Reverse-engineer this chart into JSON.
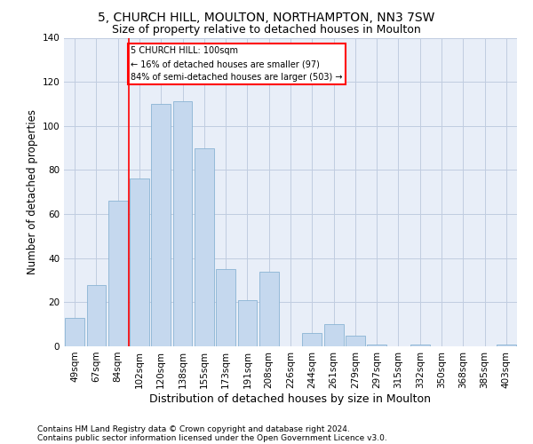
{
  "title_line1": "5, CHURCH HILL, MOULTON, NORTHAMPTON, NN3 7SW",
  "title_line2": "Size of property relative to detached houses in Moulton",
  "xlabel": "Distribution of detached houses by size in Moulton",
  "ylabel": "Number of detached properties",
  "footnote1": "Contains HM Land Registry data © Crown copyright and database right 2024.",
  "footnote2": "Contains public sector information licensed under the Open Government Licence v3.0.",
  "categories": [
    "49sqm",
    "67sqm",
    "84sqm",
    "102sqm",
    "120sqm",
    "138sqm",
    "155sqm",
    "173sqm",
    "191sqm",
    "208sqm",
    "226sqm",
    "244sqm",
    "261sqm",
    "279sqm",
    "297sqm",
    "315sqm",
    "332sqm",
    "350sqm",
    "368sqm",
    "385sqm",
    "403sqm"
  ],
  "values": [
    13,
    28,
    66,
    76,
    110,
    111,
    90,
    35,
    21,
    34,
    0,
    6,
    10,
    5,
    1,
    0,
    1,
    0,
    0,
    0,
    1
  ],
  "bar_color": "#c5d8ee",
  "bar_edge_color": "#8ab4d4",
  "vline_position": 2.5,
  "vline_color": "red",
  "annotation_text": "5 CHURCH HILL: 100sqm\n← 16% of detached houses are smaller (97)\n84% of semi-detached houses are larger (503) →",
  "annotation_box_color": "white",
  "annotation_box_edge_color": "red",
  "ylim": [
    0,
    140
  ],
  "yticks": [
    0,
    20,
    40,
    60,
    80,
    100,
    120,
    140
  ],
  "bg_color": "#e8eef8",
  "grid_color": "#c0cce0",
  "title_fontsize": 10,
  "subtitle_fontsize": 9,
  "xlabel_fontsize": 9,
  "ylabel_fontsize": 8.5,
  "tick_fontsize": 7.5,
  "footnote_fontsize": 6.5
}
